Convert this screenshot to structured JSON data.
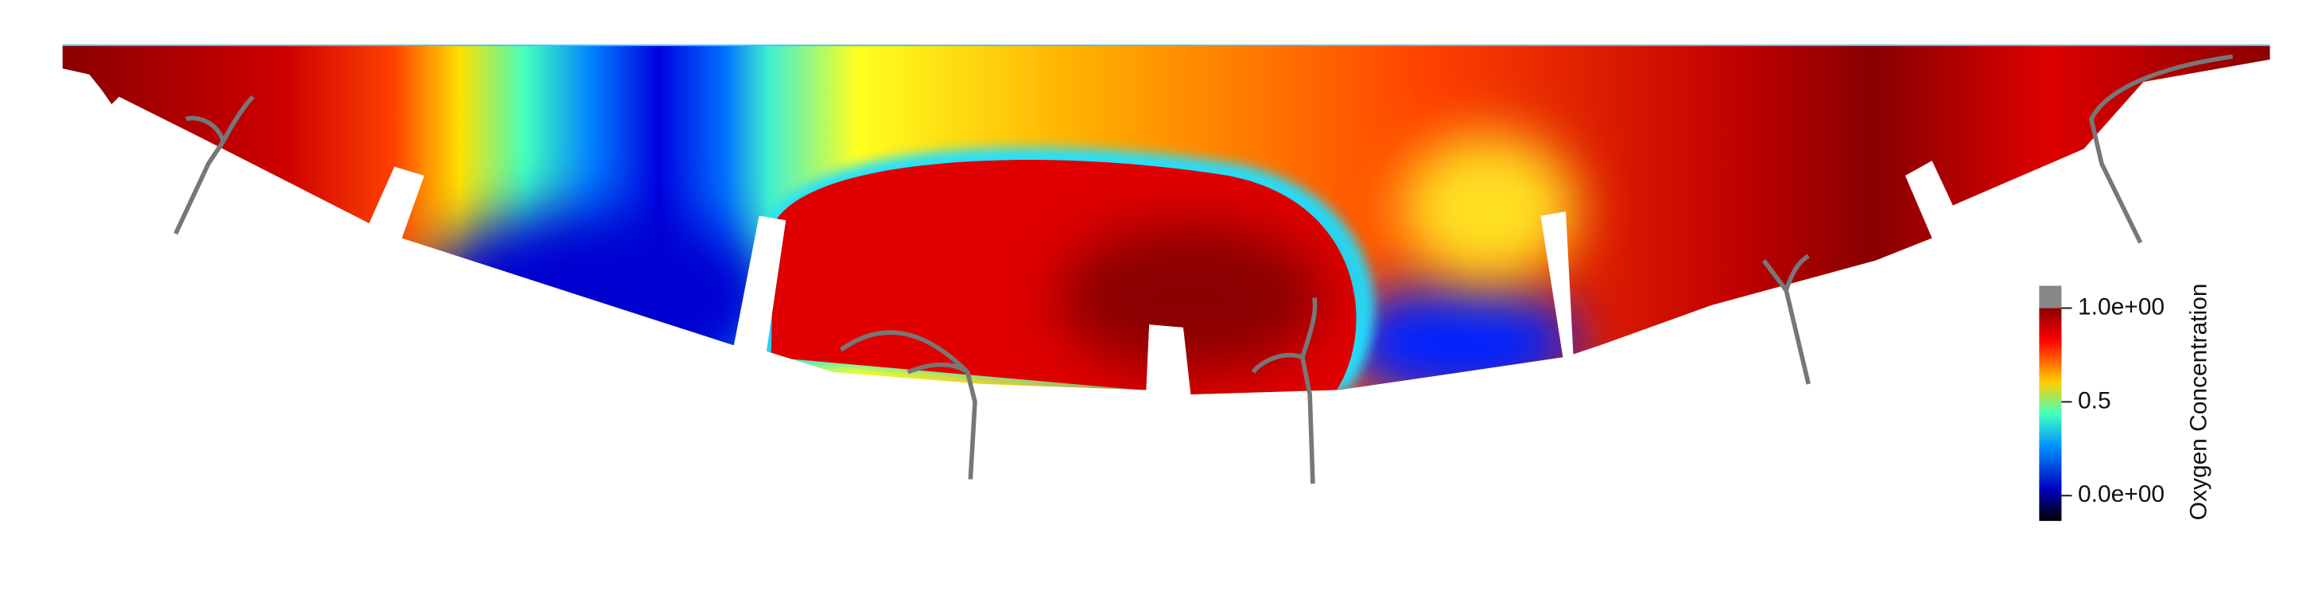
{
  "colorbar": {
    "title": "Oxygen Concentration",
    "range": [
      0,
      1
    ],
    "ticks": [
      {
        "value": 1,
        "label": "1.0e+00"
      },
      0.5,
      {
        "value": 0,
        "label": "0.0e+00"
      }
    ]
  }
}
